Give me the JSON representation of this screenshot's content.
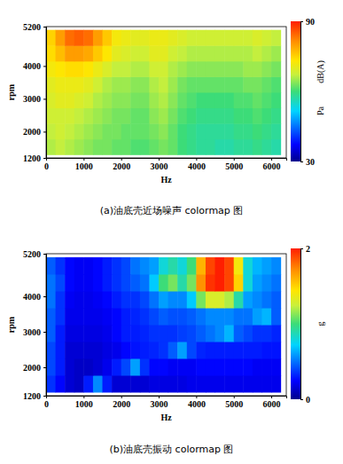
{
  "chart_data": [
    {
      "type": "heatmap",
      "title": "(a)油底壳近场噪声 colormap 图",
      "x_label": "Hz",
      "y_label": "rpm",
      "x": [
        125,
        375,
        625,
        875,
        1125,
        1375,
        1625,
        1875,
        2125,
        2375,
        2625,
        2875,
        3125,
        3375,
        3625,
        3875,
        4125,
        4375,
        4625,
        4875,
        5125,
        5375,
        5625,
        5875,
        6125
      ],
      "y": [
        1537.5,
        2012.5,
        2487.5,
        2962.5,
        3437.5,
        3912.5,
        4387.5,
        4862.5
      ],
      "values": [
        [
          66,
          67,
          66,
          65,
          64,
          63,
          63,
          62,
          62,
          61,
          61,
          62,
          63,
          62,
          60,
          59,
          58,
          58,
          57,
          57,
          58,
          58,
          59,
          58,
          57
        ],
        [
          67,
          68,
          67,
          66,
          65,
          64,
          63,
          63,
          62,
          62,
          62,
          63,
          64,
          62,
          60,
          59,
          58,
          58,
          58,
          58,
          59,
          59,
          60,
          59,
          58
        ],
        [
          68,
          68,
          68,
          67,
          66,
          65,
          64,
          63,
          63,
          62,
          62,
          64,
          65,
          63,
          61,
          60,
          59,
          59,
          59,
          59,
          60,
          60,
          61,
          60,
          59
        ],
        [
          69,
          70,
          70,
          69,
          68,
          66,
          65,
          64,
          64,
          63,
          63,
          65,
          66,
          64,
          62,
          61,
          60,
          60,
          60,
          60,
          61,
          61,
          62,
          61,
          60
        ],
        [
          70,
          71,
          71,
          71,
          70,
          68,
          66,
          65,
          65,
          64,
          64,
          66,
          67,
          65,
          63,
          62,
          62,
          62,
          62,
          62,
          62,
          63,
          63,
          62,
          61
        ],
        [
          72,
          73,
          74,
          74,
          73,
          71,
          69,
          67,
          67,
          66,
          66,
          68,
          68,
          66,
          65,
          64,
          64,
          64,
          64,
          64,
          64,
          65,
          65,
          64,
          63
        ],
        [
          74,
          77,
          80,
          80,
          79,
          76,
          73,
          70,
          69,
          68,
          68,
          70,
          70,
          68,
          67,
          66,
          66,
          66,
          66,
          66,
          66,
          66,
          67,
          66,
          65
        ],
        [
          75,
          80,
          84,
          85,
          84,
          80,
          76,
          72,
          71,
          70,
          70,
          71,
          71,
          70,
          69,
          68,
          68,
          68,
          68,
          68,
          68,
          68,
          69,
          68,
          67
        ]
      ],
      "xlim": [
        0,
        6400
      ],
      "xticks": [
        0,
        1000,
        2000,
        3000,
        4000,
        5000,
        6000
      ],
      "ylim": [
        1200,
        5200
      ],
      "yticks": [
        1200,
        2000,
        3000,
        4000,
        5200
      ],
      "colorbar": {
        "range": [
          30,
          90
        ],
        "ticks": [
          30,
          90
        ],
        "labels": [
          "dB(A)",
          "Pa"
        ]
      }
    },
    {
      "type": "heatmap",
      "title": "(b)油底壳振动 colormap 图",
      "x_label": "Hz",
      "y_label": "rpm",
      "x": [
        125,
        375,
        625,
        875,
        1125,
        1375,
        1625,
        1875,
        2125,
        2375,
        2625,
        2875,
        3125,
        3375,
        3625,
        3875,
        4125,
        4375,
        4625,
        4875,
        5125,
        5375,
        5625,
        5875,
        6125
      ],
      "y": [
        1537.5,
        2012.5,
        2487.5,
        2962.5,
        3437.5,
        3912.5,
        4387.5,
        4862.5
      ],
      "values": [
        [
          0.35,
          0.25,
          0.15,
          0.12,
          0.3,
          0.55,
          0.3,
          0.15,
          0.15,
          0.15,
          0.15,
          0.18,
          0.18,
          0.18,
          0.18,
          0.2,
          0.2,
          0.2,
          0.2,
          0.2,
          0.2,
          0.2,
          0.2,
          0.2,
          0.2
        ],
        [
          0.4,
          0.3,
          0.15,
          0.12,
          0.12,
          0.15,
          0.2,
          0.3,
          0.4,
          0.6,
          0.35,
          0.25,
          0.25,
          0.22,
          0.22,
          0.22,
          0.25,
          0.25,
          0.25,
          0.25,
          0.25,
          0.25,
          0.22,
          0.22,
          0.22
        ],
        [
          0.4,
          0.3,
          0.15,
          0.15,
          0.15,
          0.15,
          0.18,
          0.2,
          0.25,
          0.28,
          0.3,
          0.32,
          0.35,
          0.45,
          0.6,
          0.4,
          0.32,
          0.3,
          0.3,
          0.3,
          0.3,
          0.3,
          0.3,
          0.28,
          0.28
        ],
        [
          0.45,
          0.3,
          0.18,
          0.18,
          0.18,
          0.18,
          0.2,
          0.25,
          0.3,
          0.3,
          0.32,
          0.35,
          0.35,
          0.35,
          0.38,
          0.4,
          0.45,
          0.5,
          0.55,
          0.65,
          0.45,
          0.4,
          0.35,
          0.35,
          0.32
        ],
        [
          0.45,
          0.35,
          0.2,
          0.2,
          0.2,
          0.2,
          0.22,
          0.25,
          0.3,
          0.32,
          0.35,
          0.4,
          0.45,
          0.42,
          0.42,
          0.45,
          0.5,
          0.55,
          0.55,
          0.55,
          0.5,
          0.5,
          0.6,
          0.65,
          0.45
        ],
        [
          0.5,
          0.35,
          0.22,
          0.2,
          0.2,
          0.22,
          0.25,
          0.3,
          0.35,
          0.35,
          0.4,
          0.5,
          0.6,
          0.55,
          0.55,
          0.7,
          1.1,
          1.3,
          1.3,
          1.2,
          0.9,
          0.6,
          0.55,
          0.5,
          0.45
        ],
        [
          0.5,
          0.4,
          0.25,
          0.22,
          0.22,
          0.25,
          0.3,
          0.35,
          0.4,
          0.45,
          0.5,
          0.7,
          1.0,
          1.1,
          0.9,
          1.1,
          1.7,
          1.95,
          2.0,
          1.9,
          1.5,
          0.8,
          0.6,
          0.55,
          0.5
        ],
        [
          0.45,
          0.35,
          0.25,
          0.22,
          0.22,
          0.25,
          0.3,
          0.35,
          0.4,
          0.5,
          0.55,
          0.6,
          0.8,
          0.9,
          0.8,
          1.0,
          1.6,
          1.9,
          2.0,
          1.9,
          1.4,
          0.8,
          0.65,
          0.6,
          0.55
        ]
      ],
      "xlim": [
        0,
        6400
      ],
      "xticks": [
        0,
        1000,
        2000,
        3000,
        4000,
        5000,
        6000
      ],
      "ylim": [
        1200,
        5200
      ],
      "yticks": [
        1200,
        2000,
        3000,
        4000,
        5200
      ],
      "colorbar": {
        "range": [
          0,
          2
        ],
        "ticks": [
          0,
          2
        ],
        "labels": [
          "g"
        ]
      }
    }
  ]
}
